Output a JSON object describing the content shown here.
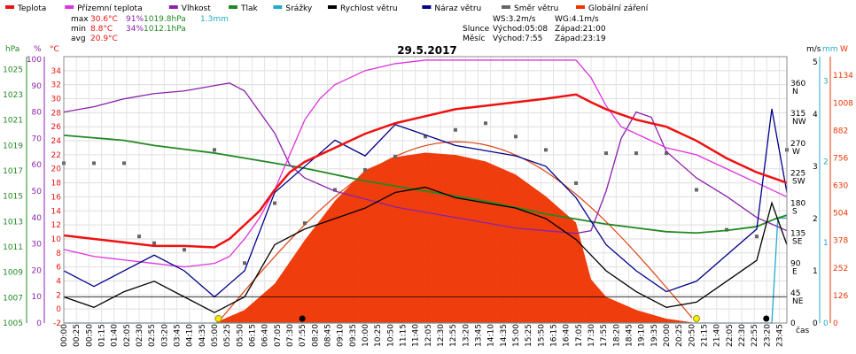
{
  "legend": [
    {
      "label": "Teplota",
      "color": "#ee1111"
    },
    {
      "label": "Přízemní teplota",
      "color": "#dd33dd"
    },
    {
      "label": "Vlhkost",
      "color": "#8a22aa"
    },
    {
      "label": "Tlak",
      "color": "#228822"
    },
    {
      "label": "Srážky",
      "color": "#22aacc"
    },
    {
      "label": "Rychlost větru",
      "color": "#000000"
    },
    {
      "label": "Náraz větru",
      "color": "#000088"
    },
    {
      "label": "Směr větru",
      "color": "#666666"
    },
    {
      "label": "Globální záření",
      "color": "#ee3300"
    }
  ],
  "stats": {
    "max": {
      "label": "max",
      "temp": "30.6°C",
      "hum": "91%",
      "press": "1019.8hPa",
      "rain": "1.3mm"
    },
    "min": {
      "label": "min",
      "temp": "8.8°C",
      "hum": "34%",
      "press": "1012.1hPa"
    },
    "avg": {
      "label": "avg",
      "temp": "20.9°C"
    }
  },
  "wind_info": {
    "ws": "WS:3.2m/s",
    "wg": "WG:4.1m/s",
    "slunce_label": "Slunce",
    "slunce_rise": "Východ:05:08",
    "slunce_set": "Západ:21:00",
    "mesic_label": "Měsíc",
    "mesic_rise": "Východ:7:55",
    "mesic_set": "Západ:23:19"
  },
  "date": "29.5.2017",
  "axis_titles": {
    "hpa": "hPa",
    "pct": "%",
    "degc": "°C",
    "ms": "m/s",
    "mm": "mm",
    "w": "W",
    "cas": "čas"
  },
  "axes": {
    "hpa_ticks": [
      "1025",
      "1023",
      "1021",
      "1019",
      "1017",
      "1015",
      "1013",
      "1011",
      "1009",
      "1007",
      "1005"
    ],
    "pct_ticks": [
      "100",
      "90",
      "80",
      "70",
      "60",
      "50",
      "40",
      "30",
      "20",
      "10",
      "0"
    ],
    "temp_ticks": [
      "34",
      "32",
      "30",
      "28",
      "26",
      "24",
      "22",
      "20",
      "18",
      "16",
      "14",
      "12",
      "10",
      "8",
      "6",
      "4",
      "2",
      "0",
      "-2"
    ],
    "dir_ticks": [
      "360",
      "315",
      "270",
      "225",
      "180",
      "135",
      "90",
      "45",
      "0"
    ],
    "dir_labels": [
      "N",
      "NW",
      "W",
      "SW",
      "S",
      "SE",
      "E",
      "NE",
      ""
    ],
    "ms_ticks": [
      "5",
      "4",
      "3",
      "2",
      "1",
      "0"
    ],
    "mm_ticks": [
      "3",
      "2",
      "1",
      "0"
    ],
    "w_ticks": [
      "1134",
      "1008",
      "882",
      "756",
      "630",
      "504",
      "378",
      "252",
      "126",
      "0"
    ],
    "time_ticks": [
      "00:00",
      "00:25",
      "00:50",
      "01:15",
      "01:40",
      "02:05",
      "02:30",
      "02:55",
      "03:20",
      "03:45",
      "04:10",
      "04:35",
      "05:00",
      "05:25",
      "05:50",
      "06:15",
      "06:40",
      "07:05",
      "07:30",
      "07:55",
      "08:20",
      "08:45",
      "09:10",
      "09:35",
      "10:00",
      "10:25",
      "10:50",
      "11:15",
      "11:40",
      "12:05",
      "12:30",
      "12:55",
      "13:20",
      "13:45",
      "14:10",
      "14:35",
      "15:00",
      "15:25",
      "15:50",
      "16:15",
      "16:40",
      "17:05",
      "17:30",
      "17:55",
      "18:20",
      "18:45",
      "19:10",
      "19:35",
      "20:00",
      "20:25",
      "20:50",
      "21:15",
      "21:40",
      "22:05",
      "22:30",
      "22:55",
      "23:20",
      "23:45"
    ]
  },
  "chart_data": {
    "type": "line",
    "title": "29.5.2017",
    "x_unit": "hours (00:00-24:00)",
    "series": [
      {
        "name": "Teplota",
        "unit": "°C",
        "color": "#ee1111",
        "x": [
          0,
          1,
          2,
          3,
          4,
          5,
          5.5,
          6,
          6.5,
          7,
          7.5,
          8,
          9,
          10,
          11,
          12,
          13,
          14,
          15,
          16,
          17,
          17.5,
          18,
          19,
          20,
          21,
          22,
          23,
          24
        ],
        "y": [
          10.5,
          10,
          9.5,
          9,
          9,
          8.8,
          10,
          12,
          14,
          17,
          19.5,
          21,
          23,
          25,
          26.5,
          27.5,
          28.5,
          29,
          29.5,
          30,
          30.6,
          29.5,
          28.5,
          27,
          26,
          24,
          21.5,
          19.5,
          18
        ]
      },
      {
        "name": "Přízemní teplota",
        "unit": "°C",
        "color": "#dd33dd",
        "x": [
          0,
          1,
          2,
          3,
          4,
          5,
          5.5,
          6,
          6.5,
          7,
          7.5,
          8,
          8.5,
          9,
          10,
          11,
          12,
          13,
          14,
          15,
          16,
          17,
          17.5,
          18,
          18.5,
          19,
          20,
          21,
          22,
          23,
          24
        ],
        "y": [
          8.5,
          7.5,
          7,
          6.5,
          6,
          6.5,
          7.5,
          10,
          13,
          17,
          22,
          27,
          30,
          32,
          34,
          35,
          35.5,
          35.5,
          35.5,
          35.5,
          35.5,
          35.5,
          33,
          29,
          26,
          25,
          23,
          22,
          20,
          18,
          16
        ]
      },
      {
        "name": "Vlhkost",
        "unit": "%",
        "color": "#8a22aa",
        "x": [
          0,
          1,
          2,
          3,
          4,
          5,
          5.5,
          6,
          6.5,
          7,
          7.5,
          8,
          9,
          10,
          11,
          12,
          13,
          14,
          15,
          16,
          17,
          17.5,
          18,
          18.5,
          19,
          19.5,
          20,
          21,
          22,
          23,
          24
        ],
        "y": [
          80,
          82,
          85,
          87,
          88,
          90,
          91,
          88,
          80,
          72,
          60,
          55,
          50,
          47,
          44,
          42,
          40,
          38,
          36,
          35,
          34,
          35,
          50,
          70,
          80,
          78,
          65,
          55,
          48,
          40,
          35
        ]
      },
      {
        "name": "Tlak",
        "unit": "hPa",
        "color": "#228822",
        "x": [
          0,
          1,
          2,
          3,
          4,
          5,
          6,
          7,
          8,
          9,
          10,
          11,
          12,
          13,
          14,
          15,
          16,
          17,
          18,
          19,
          20,
          21,
          22,
          23,
          23.6,
          24
        ],
        "y": [
          1019.8,
          1019.6,
          1019.4,
          1019,
          1018.7,
          1018.4,
          1018,
          1017.6,
          1017.2,
          1016.7,
          1016.2,
          1015.8,
          1015.4,
          1015,
          1014.6,
          1014.1,
          1013.6,
          1013.2,
          1012.8,
          1012.5,
          1012.2,
          1012.1,
          1012.3,
          1012.6,
          1013.2,
          1013.5
        ]
      },
      {
        "name": "Srážky",
        "unit": "mm",
        "color": "#22aacc",
        "x": [
          0,
          23.5,
          23.7,
          24
        ],
        "y": [
          0,
          0,
          1.3,
          1.3
        ]
      },
      {
        "name": "Rychlost větru",
        "unit": "m/s",
        "color": "#000000",
        "x": [
          0,
          1,
          2,
          3,
          4,
          5,
          6,
          7,
          8,
          9,
          10,
          11,
          12,
          13,
          14,
          15,
          16,
          17,
          18,
          19,
          20,
          21,
          22,
          23,
          23.5,
          24
        ],
        "y": [
          0.5,
          0.3,
          0.6,
          0.8,
          0.5,
          0.2,
          0.5,
          1.5,
          1.8,
          2,
          2.2,
          2.5,
          2.6,
          2.4,
          2.3,
          2.2,
          2,
          1.6,
          1,
          0.6,
          0.3,
          0.4,
          0.8,
          1.2,
          2.3,
          1.5
        ]
      },
      {
        "name": "Náraz větru",
        "unit": "m/s",
        "color": "#000088",
        "x": [
          0,
          1,
          2,
          3,
          4,
          5,
          6,
          7,
          8,
          9,
          10,
          11,
          12,
          13,
          14,
          15,
          16,
          17,
          18,
          19,
          20,
          21,
          22,
          23,
          23.5,
          24
        ],
        "y": [
          1,
          0.7,
          1,
          1.3,
          1,
          0.5,
          1,
          2.5,
          3,
          3.5,
          3.2,
          3.8,
          3.6,
          3.4,
          3.3,
          3.2,
          3,
          2.4,
          1.5,
          1,
          0.6,
          0.8,
          1.3,
          1.8,
          4.1,
          2.5
        ]
      },
      {
        "name": "Směr větru",
        "unit": "°",
        "color": "#666666",
        "style": "points",
        "x": [
          0,
          1,
          2,
          2.5,
          3,
          4,
          5,
          6,
          7,
          8,
          9,
          10,
          11,
          12,
          13,
          14,
          15,
          16,
          17,
          18,
          19,
          20,
          21,
          22,
          23,
          24
        ],
        "y": [
          240,
          240,
          240,
          130,
          120,
          110,
          260,
          90,
          180,
          150,
          200,
          230,
          250,
          280,
          290,
          300,
          280,
          260,
          210,
          255,
          255,
          255,
          200,
          140,
          130,
          260
        ]
      },
      {
        "name": "Globální záření",
        "unit": "W/m²",
        "color": "#ee3300",
        "style": "area",
        "x": [
          5,
          6,
          7,
          8,
          9,
          10,
          11,
          12,
          13,
          14,
          15,
          16,
          17,
          17.5,
          18,
          19,
          20,
          21
        ],
        "y": [
          0,
          60,
          180,
          380,
          560,
          700,
          760,
          780,
          770,
          740,
          680,
          580,
          460,
          200,
          120,
          60,
          20,
          0
        ]
      }
    ]
  }
}
